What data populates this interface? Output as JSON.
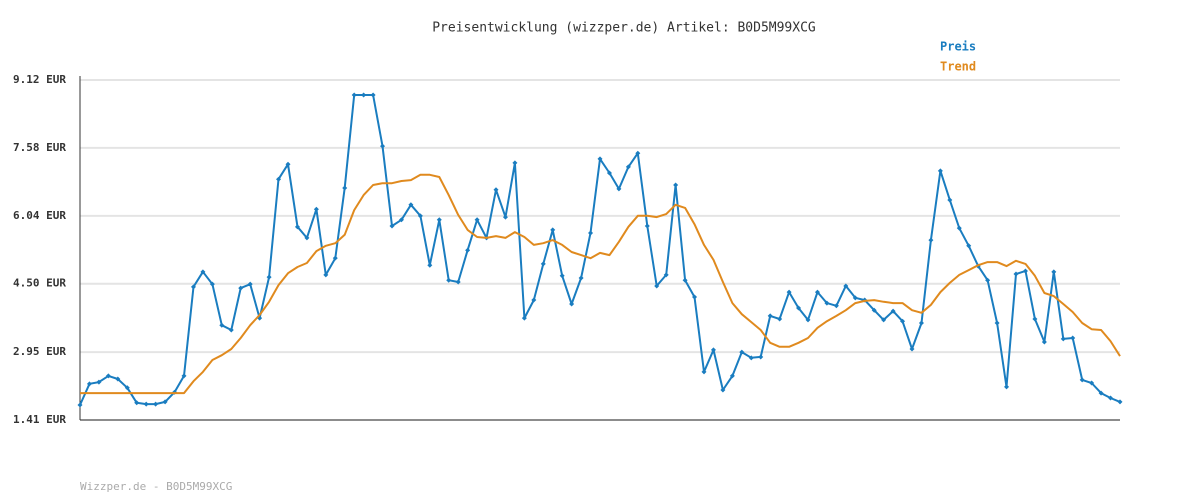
{
  "chart_data": {
    "type": "line",
    "title": "Preisentwicklung (wizzper.de) Artikel: B0D5M99XCG",
    "footer": "Wizzper.de - B0D5M99XCG",
    "ylim": [
      1.41,
      9.12
    ],
    "yticks": [
      {
        "value": 1.41,
        "label": "1.41 EUR"
      },
      {
        "value": 2.95,
        "label": "2.95 EUR"
      },
      {
        "value": 4.5,
        "label": "4.50 EUR"
      },
      {
        "value": 6.04,
        "label": "6.04 EUR"
      },
      {
        "value": 7.58,
        "label": "7.58 EUR"
      },
      {
        "value": 9.12,
        "label": "9.12 EUR"
      }
    ],
    "grid": true,
    "legend": "top-right",
    "series": [
      {
        "name": "Preis",
        "color": "#1a7dc0",
        "values": [
          1.75,
          2.23,
          2.27,
          2.41,
          2.34,
          2.14,
          1.8,
          1.77,
          1.77,
          1.82,
          2.04,
          2.41,
          4.43,
          4.77,
          4.49,
          3.56,
          3.45,
          4.4,
          4.49,
          3.72,
          4.65,
          6.87,
          7.21,
          5.79,
          5.54,
          6.19,
          4.7,
          5.08,
          6.67,
          8.78,
          8.78,
          8.78,
          7.62,
          5.81,
          5.95,
          6.29,
          6.04,
          4.92,
          5.95,
          4.58,
          4.54,
          5.26,
          5.95,
          5.54,
          6.63,
          6.01,
          7.24,
          3.72,
          4.13,
          4.95,
          5.72,
          4.68,
          4.04,
          4.63,
          5.65,
          7.33,
          7.01,
          6.65,
          7.15,
          7.46,
          5.81,
          4.45,
          4.7,
          6.74,
          4.58,
          4.2,
          2.5,
          3.0,
          2.09,
          2.41,
          2.95,
          2.82,
          2.84,
          3.77,
          3.7,
          4.31,
          3.95,
          3.68,
          4.31,
          4.06,
          4.0,
          4.45,
          4.18,
          4.13,
          3.9,
          3.68,
          3.88,
          3.65,
          3.02,
          3.61,
          5.49,
          7.06,
          6.4,
          5.76,
          5.36,
          4.9,
          4.58,
          3.61,
          2.16,
          4.72,
          4.79,
          3.7,
          3.18,
          4.77,
          3.25,
          3.27,
          2.32,
          2.25,
          2.02,
          1.91,
          1.82
        ]
      },
      {
        "name": "Trend",
        "color": "#e08a1e",
        "values": [
          2.02,
          2.02,
          2.02,
          2.02,
          2.02,
          2.02,
          2.02,
          2.02,
          2.02,
          2.02,
          2.02,
          2.02,
          2.29,
          2.5,
          2.77,
          2.88,
          3.02,
          3.27,
          3.56,
          3.79,
          4.09,
          4.47,
          4.74,
          4.88,
          4.97,
          5.24,
          5.36,
          5.42,
          5.61,
          6.17,
          6.51,
          6.74,
          6.78,
          6.78,
          6.83,
          6.85,
          6.97,
          6.97,
          6.92,
          6.51,
          6.06,
          5.72,
          5.56,
          5.54,
          5.58,
          5.54,
          5.67,
          5.56,
          5.38,
          5.42,
          5.49,
          5.38,
          5.22,
          5.15,
          5.08,
          5.2,
          5.15,
          5.45,
          5.79,
          6.04,
          6.04,
          6.01,
          6.08,
          6.29,
          6.22,
          5.85,
          5.38,
          5.04,
          4.54,
          4.06,
          3.81,
          3.63,
          3.45,
          3.16,
          3.07,
          3.07,
          3.16,
          3.27,
          3.5,
          3.65,
          3.77,
          3.9,
          4.06,
          4.11,
          4.13,
          4.09,
          4.06,
          4.06,
          3.9,
          3.84,
          4.02,
          4.31,
          4.52,
          4.7,
          4.81,
          4.92,
          4.99,
          4.99,
          4.9,
          5.02,
          4.95,
          4.68,
          4.29,
          4.22,
          4.04,
          3.86,
          3.61,
          3.47,
          3.45,
          3.2,
          2.86
        ]
      }
    ]
  }
}
